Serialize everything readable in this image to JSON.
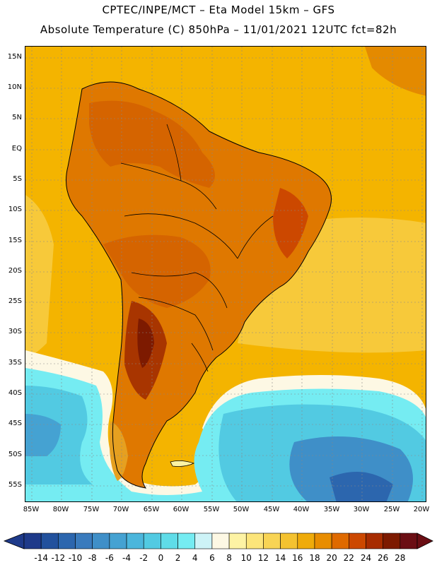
{
  "header": {
    "title_line1": "CPTEC/INPE/MCT –  Eta Model 15km – GFS",
    "title_line2": "Absolute Temperature (C) 850hPa – 11/01/2021 12UTC fct=82h"
  },
  "map": {
    "region": "South America",
    "lat_labels": [
      "15N",
      "10N",
      "5N",
      "EQ",
      "5S",
      "10S",
      "15S",
      "20S",
      "25S",
      "30S",
      "35S",
      "40S",
      "45S",
      "50S",
      "55S"
    ],
    "lon_labels": [
      "85W",
      "80W",
      "75W",
      "70W",
      "65W",
      "60W",
      "55W",
      "50W",
      "45W",
      "40W",
      "35W",
      "30W",
      "25W",
      "20W"
    ]
  },
  "colorbar": {
    "ticks": [
      "-14",
      "-12",
      "-10",
      "-8",
      "-6",
      "-4",
      "-2",
      "0",
      "2",
      "4",
      "6",
      "8",
      "10",
      "12",
      "14",
      "16",
      "18",
      "20",
      "22",
      "24",
      "26",
      "28"
    ],
    "colors": [
      "#1e3a8a",
      "#22519d",
      "#2c66ae",
      "#3a7bbd",
      "#3f8fc8",
      "#45a2d2",
      "#4bb6dc",
      "#52cae2",
      "#5fdce8",
      "#75ecf2",
      "#cdf3f7",
      "#fdf8e4",
      "#fdf3a4",
      "#fce57a",
      "#f8d455",
      "#f4c230",
      "#efab0a",
      "#e88d00",
      "#df6a00",
      "#cc4800",
      "#a72c00",
      "#7d1a00",
      "#6b0e14"
    ]
  },
  "colors": {
    "ocean_warm": "#f4b400",
    "land_hot": "#d56400",
    "land_very_hot": "#a83500",
    "cold_core": "#3c8fc8",
    "cold_edge": "#6fdcec"
  }
}
